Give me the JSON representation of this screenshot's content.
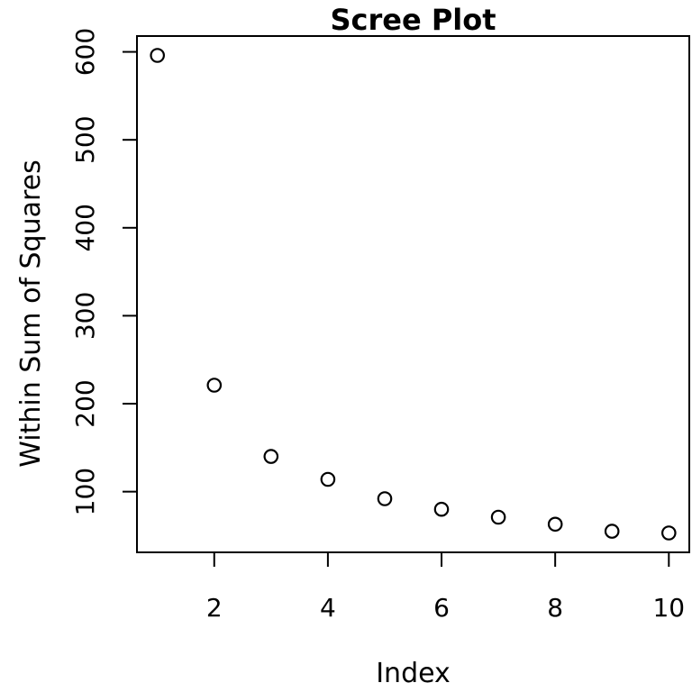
{
  "figure": {
    "background": "#ffffff",
    "foreground": "#000000"
  },
  "chart_data": {
    "type": "scatter",
    "title": "Scree Plot",
    "xlabel": "Index",
    "ylabel": "Within Sum of Squares",
    "x": [
      1,
      2,
      3,
      4,
      5,
      6,
      7,
      8,
      9,
      10
    ],
    "y": [
      596,
      221,
      140,
      114,
      92,
      80,
      71,
      63,
      55,
      53
    ],
    "x_tick_values": [
      2,
      4,
      6,
      8,
      10
    ],
    "x_tick_labels": [
      "2",
      "4",
      "6",
      "8",
      "10"
    ],
    "y_tick_values": [
      100,
      200,
      300,
      400,
      500,
      600
    ],
    "y_tick_labels": [
      "100",
      "200",
      "300",
      "400",
      "500",
      "600"
    ],
    "xlim": [
      0.64,
      10.36
    ],
    "ylim": [
      31,
      618
    ],
    "grid": false,
    "legend": "none",
    "marker": "open-circle",
    "point_color": "#000000",
    "axis_color": "#000000"
  }
}
